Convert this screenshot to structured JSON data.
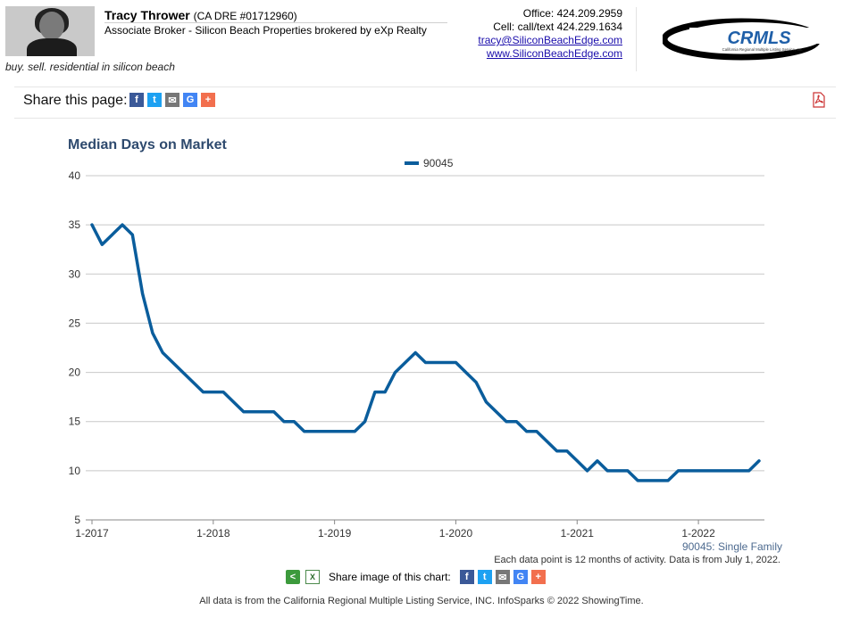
{
  "agent": {
    "name": "Tracy Thrower",
    "dre": "(CA DRE #01712960)",
    "title": "Associate Broker - Silicon Beach Properties brokered by eXp Realty",
    "tagline": "buy. sell. residential in silicon beach",
    "office": "Office: 424.209.2959",
    "cell": "Cell: call/text 424.229.1634",
    "email": "tracy@SiliconBeachEdge.com",
    "website": "www.SiliconBeachEdge.com"
  },
  "logo": {
    "text": "CRMLS",
    "subtext": "California Regional Multiple Listing Service, Inc."
  },
  "share": {
    "label": "Share this page:",
    "image_label": "Share image of this chart:"
  },
  "icons": [
    "facebook-icon",
    "twitter-icon",
    "email-icon",
    "google-icon",
    "plus-icon",
    "pdf-icon",
    "share-icon",
    "excel-icon"
  ],
  "colors": {
    "series": "#0a5d9c",
    "title": "#2e4a6e",
    "grid": "#c8c8c8"
  },
  "chart_data": {
    "type": "line",
    "title": "Median Days on Market",
    "ylim": [
      5,
      40
    ],
    "yticks": [
      "5",
      "10",
      "15",
      "20",
      "25",
      "30",
      "35",
      "40"
    ],
    "xticks": [
      "1-2017",
      "1-2018",
      "1-2019",
      "1-2020",
      "1-2021",
      "1-2022"
    ],
    "legend_position": "top-center",
    "grid": true,
    "series": [
      {
        "name": "90045",
        "x": [
          "1-2017",
          "2-2017",
          "3-2017",
          "4-2017",
          "5-2017",
          "6-2017",
          "7-2017",
          "8-2017",
          "9-2017",
          "10-2017",
          "11-2017",
          "12-2017",
          "1-2018",
          "2-2018",
          "3-2018",
          "4-2018",
          "5-2018",
          "6-2018",
          "7-2018",
          "8-2018",
          "9-2018",
          "10-2018",
          "11-2018",
          "12-2018",
          "1-2019",
          "2-2019",
          "3-2019",
          "4-2019",
          "5-2019",
          "6-2019",
          "7-2019",
          "8-2019",
          "9-2019",
          "10-2019",
          "11-2019",
          "12-2019",
          "1-2020",
          "2-2020",
          "3-2020",
          "4-2020",
          "5-2020",
          "6-2020",
          "7-2020",
          "8-2020",
          "9-2020",
          "10-2020",
          "11-2020",
          "12-2020",
          "1-2021",
          "2-2021",
          "3-2021",
          "4-2021",
          "5-2021",
          "6-2021",
          "7-2021",
          "8-2021",
          "9-2021",
          "10-2021",
          "11-2021",
          "12-2021",
          "1-2022",
          "2-2022",
          "3-2022",
          "4-2022",
          "5-2022",
          "6-2022",
          "7-2022"
        ],
        "values": [
          35,
          33,
          34,
          35,
          34,
          28,
          24,
          22,
          21,
          20,
          19,
          18,
          18,
          18,
          17,
          16,
          16,
          16,
          16,
          15,
          15,
          14,
          14,
          14,
          14,
          14,
          14,
          15,
          18,
          18,
          20,
          21,
          22,
          21,
          21,
          21,
          21,
          20,
          19,
          17,
          16,
          15,
          15,
          14,
          14,
          13,
          12,
          12,
          11,
          10,
          11,
          10,
          10,
          10,
          9,
          9,
          9,
          9,
          10,
          10,
          10,
          10,
          10,
          10,
          10,
          10,
          11
        ]
      }
    ]
  },
  "footnotes": {
    "series_label": "90045: Single Family",
    "note": "Each data point is 12 months of activity. Data is from July 1, 2022.",
    "footer": "All data is from the California Regional Multiple Listing Service, INC. InfoSparks © 2022 ShowingTime."
  }
}
